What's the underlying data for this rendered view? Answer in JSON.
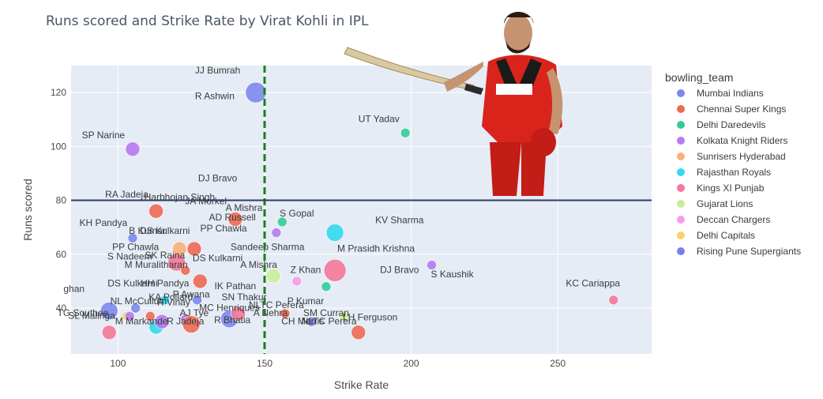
{
  "chart_data": {
    "type": "scatter",
    "title": "Runs scored and Strike Rate by Virat Kohli in IPL",
    "xlabel": "Strike Rate",
    "ylabel": "Runs scored",
    "xlim": [
      84,
      282
    ],
    "ylim": [
      23,
      130
    ],
    "xticks": [
      100,
      150,
      200,
      250
    ],
    "yticks": [
      40,
      60,
      80,
      100,
      120
    ],
    "grid": true,
    "reference_lines": [
      {
        "orientation": "vertical",
        "value": 150,
        "color": "#1a7f1a",
        "style": "dashed"
      },
      {
        "orientation": "horizontal",
        "value": 80,
        "color": "#2c3e60",
        "style": "solid"
      }
    ],
    "legend": {
      "title": "bowling_team",
      "placement": "right",
      "entries": [
        {
          "name": "Mumbai Indians",
          "color": "#7d88ee"
        },
        {
          "name": "Chennai Super Kings",
          "color": "#ec6a55"
        },
        {
          "name": "Delhi Daredevils",
          "color": "#33cc99"
        },
        {
          "name": "Kolkata Knight Riders",
          "color": "#b57aef"
        },
        {
          "name": "Sunrisers Hyderabad",
          "color": "#f9b07a"
        },
        {
          "name": "Rajasthan Royals",
          "color": "#33d9ee"
        },
        {
          "name": "Kings XI Punjab",
          "color": "#f37999"
        },
        {
          "name": "Gujarat Lions",
          "color": "#c5ef99"
        },
        {
          "name": "Deccan Chargers",
          "color": "#f79bec"
        },
        {
          "name": "Delhi Capitals",
          "color": "#fbcf6e"
        },
        {
          "name": "Rising Pune Supergiants",
          "color": "#7a7fef"
        }
      ]
    },
    "points": [
      {
        "label": "JJ Bumrah",
        "x": 147,
        "y": 120,
        "team": "Mumbai Indians",
        "size": 13
      },
      {
        "label": "R Ashwin",
        "x": 147,
        "y": 120,
        "team": "Mumbai Indians",
        "size": 0
      },
      {
        "label": "UT Yadav",
        "x": 198,
        "y": 105,
        "team": "Delhi Daredevils",
        "size": 6
      },
      {
        "label": "SP Narine",
        "x": 105,
        "y": 99,
        "team": "Kolkata Knight Riders",
        "size": 9
      },
      {
        "label": "DJ Bravo",
        "x": 115,
        "y": 87,
        "team": "Kolkata Knight Riders",
        "size": 0
      },
      {
        "label": "RA Jadeja",
        "x": 113,
        "y": 76,
        "team": "Chennai Super Kings",
        "size": 9
      },
      {
        "label": "Harbhajan Singh",
        "x": 113,
        "y": 76,
        "team": "Chennai Super Kings",
        "size": 0
      },
      {
        "label": "JA Morkel",
        "x": 123,
        "y": 74,
        "team": "Chennai Super Kings",
        "size": 0
      },
      {
        "label": "A Mishra",
        "x": 140,
        "y": 73,
        "team": "Chennai Super Kings",
        "size": 9
      },
      {
        "label": "AD Russell",
        "x": 140,
        "y": 73,
        "team": "Chennai Super Kings",
        "size": 0
      },
      {
        "label": "S Gopal",
        "x": 156,
        "y": 72,
        "team": "Delhi Daredevils",
        "size": 6
      },
      {
        "label": "KV Sharma",
        "x": 174,
        "y": 68,
        "team": "Rajasthan Royals",
        "size": 11
      },
      {
        "label": "PP Chawla",
        "x": 154,
        "y": 68,
        "team": "Kolkata Knight Riders",
        "size": 6
      },
      {
        "label": "KH Pandya",
        "x": 105,
        "y": 66,
        "team": "Mumbai Indians",
        "size": 6
      },
      {
        "label": "B Kumar",
        "x": 106,
        "y": 66,
        "team": "Mumbai Indians",
        "size": 0
      },
      {
        "label": "DS Kulkarni",
        "x": 112,
        "y": 66,
        "team": "Mumbai Indians",
        "size": 0
      },
      {
        "label": "PP Chawla",
        "x": 121,
        "y": 62,
        "team": "Sunrisers Hyderabad",
        "size": 9
      },
      {
        "label": "Sandeep Sharma",
        "x": 126,
        "y": 62,
        "team": "Chennai Super Kings",
        "size": 9
      },
      {
        "label": "M Prasidh Krishna",
        "x": 150,
        "y": 62,
        "team": "Kolkata Knight Riders",
        "size": 0
      },
      {
        "label": "S Nadeem",
        "x": 117,
        "y": 58,
        "team": "Kings XI Punjab",
        "size": 0
      },
      {
        "label": "SK Raina",
        "x": 120,
        "y": 57,
        "team": "Kings XI Punjab",
        "size": 11
      },
      {
        "label": "DS Kulkarni",
        "x": 126,
        "y": 57,
        "team": "Chennai Super Kings",
        "size": 0
      },
      {
        "label": "M Muralitharan",
        "x": 123,
        "y": 54,
        "team": "Chennai Super Kings",
        "size": 6
      },
      {
        "label": "A Mishra",
        "x": 153,
        "y": 52,
        "team": "Gujarat Lions",
        "size": 9
      },
      {
        "label": "Z Khan",
        "x": 174,
        "y": 54,
        "team": "Kings XI Punjab",
        "size": 14
      },
      {
        "label": "DJ Bravo",
        "x": 207,
        "y": 56,
        "team": "Kolkata Knight Riders",
        "size": 6
      },
      {
        "label": "S Kaushik",
        "x": 208,
        "y": 52,
        "team": "Kolkata Knight Riders",
        "size": 0
      },
      {
        "label": "DS Kulkarni",
        "x": 110,
        "y": 48,
        "team": "Mumbai Indians",
        "size": 0
      },
      {
        "label": "HH Pandya",
        "x": 128,
        "y": 50,
        "team": "Chennai Super Kings",
        "size": 9
      },
      {
        "label": "IK Pathan",
        "x": 161,
        "y": 50,
        "team": "Deccan Chargers",
        "size": 6
      },
      {
        "label": "KC Cariappa",
        "x": 269,
        "y": 43,
        "team": "Kings XI Punjab",
        "size": 6
      },
      {
        "label": "R Vinay",
        "x": 171,
        "y": 48,
        "team": "Delhi Daredevils",
        "size": 6
      },
      {
        "label": "KA Pollard",
        "x": 116,
        "y": 43,
        "team": "Rajasthan Royals",
        "size": 6
      },
      {
        "label": "P Awana",
        "x": 127,
        "y": 43,
        "team": "Mumbai Indians",
        "size": 6
      },
      {
        "label": "SN Thakur",
        "x": 140,
        "y": 41,
        "team": "Mumbai Indians",
        "size": 0
      },
      {
        "label": "P Kumar",
        "x": 160,
        "y": 41,
        "team": "Mumbai Indians",
        "size": 0
      },
      {
        "label": "M Ashwin",
        "x": 97,
        "y": 39,
        "team": "Mumbai Indians",
        "size": 11
      },
      {
        "label": "AJ Tye",
        "x": 123,
        "y": 36,
        "team": "Kolkata Knight Riders",
        "size": 6
      },
      {
        "label": "MC Henriques",
        "x": 138,
        "y": 36,
        "team": "Mumbai Indians",
        "size": 11
      },
      {
        "label": "NLTC Perera",
        "x": 141,
        "y": 38,
        "team": "Kings XI Punjab",
        "size": 9
      },
      {
        "label": "A Nehra",
        "x": 157,
        "y": 38,
        "team": "Chennai Super Kings",
        "size": 6
      },
      {
        "label": "SM Curran",
        "x": 177,
        "y": 37,
        "team": "Gujarat Lions",
        "size": 6
      },
      {
        "label": "LH Ferguson",
        "x": 182,
        "y": 31,
        "team": "Chennai Super Kings",
        "size": 9
      },
      {
        "label": "R Bhatia",
        "x": 139,
        "y": 34,
        "team": "Chennai Super Kings",
        "size": 0
      },
      {
        "label": "CH Morris",
        "x": 166,
        "y": 35,
        "team": "Mumbai Indians",
        "size": 6
      },
      {
        "label": "TG Southee",
        "x": 103,
        "y": 37,
        "team": "Delhi Capitals",
        "size": 6
      },
      {
        "label": "M Markande",
        "x": 113,
        "y": 33,
        "team": "Rajasthan Royals",
        "size": 9
      },
      {
        "label": "R Jadeja",
        "x": 125,
        "y": 34,
        "team": "Chennai Super Kings",
        "size": 11
      },
      {
        "label": "K Rabada",
        "x": 115,
        "y": 35,
        "team": "Kolkata Knight Riders",
        "size": 9
      },
      {
        "label": "SL Malinga",
        "x": 97,
        "y": 31,
        "team": "Kings XI Punjab",
        "size": 9
      },
      {
        "label": "A Kumble",
        "x": 104,
        "y": 37,
        "team": "Kolkata Knight Riders",
        "size": 6
      },
      {
        "label": "R Sharma",
        "x": 111,
        "y": 37,
        "team": "Chennai Super Kings",
        "size": 6
      },
      {
        "label": "NL McCullum",
        "x": 106,
        "y": 40,
        "team": "Mumbai Indians",
        "size": 6
      }
    ],
    "text_labels": [
      {
        "text": "JJ Bumrah",
        "x": 134,
        "y": 127
      },
      {
        "text": "R Ashwin",
        "x": 133,
        "y": 117.5
      },
      {
        "text": "UT Yadav",
        "x": 189,
        "y": 109
      },
      {
        "text": "SP Narine",
        "x": 95,
        "y": 103
      },
      {
        "text": "DJ Bravo",
        "x": 134,
        "y": 87
      },
      {
        "text": "RA Jadeja",
        "x": 103,
        "y": 81
      },
      {
        "text": "Harbhojan Singh",
        "x": 121,
        "y": 80
      },
      {
        "text": "JA Morkel",
        "x": 130,
        "y": 78.5
      },
      {
        "text": "A Mishra",
        "x": 143,
        "y": 76
      },
      {
        "text": "AD Russell",
        "x": 139,
        "y": 72.5
      },
      {
        "text": "S Gopal",
        "x": 161,
        "y": 74
      },
      {
        "text": "KV Sharma",
        "x": 196,
        "y": 71.5
      },
      {
        "text": "PP Chawla",
        "x": 136,
        "y": 68.5
      },
      {
        "text": "KH Pandya",
        "x": 95,
        "y": 70.5
      },
      {
        "text": "B Kumar",
        "x": 110,
        "y": 67.5
      },
      {
        "text": "DS Kulkarni",
        "x": 116,
        "y": 67.5
      },
      {
        "text": "Sandeep Sharma",
        "x": 151,
        "y": 61.5
      },
      {
        "text": "PP Chawla",
        "x": 106,
        "y": 61.5
      },
      {
        "text": "M Prasidh Krishna",
        "x": 188,
        "y": 61
      },
      {
        "text": "S Nadeem",
        "x": 104,
        "y": 58
      },
      {
        "text": "SK Raina",
        "x": 116,
        "y": 58.5
      },
      {
        "text": "DS Kulkarni",
        "x": 134,
        "y": 57.5
      },
      {
        "text": "M Muralitharan",
        "x": 113,
        "y": 55
      },
      {
        "text": "A Mishra",
        "x": 148,
        "y": 55
      },
      {
        "text": "Z Khan",
        "x": 164,
        "y": 53
      },
      {
        "text": "DJ Bravo",
        "x": 196,
        "y": 53
      },
      {
        "text": "S Kaushik",
        "x": 214,
        "y": 51.5
      },
      {
        "text": "DS Kulkarni",
        "x": 105,
        "y": 48
      },
      {
        "text": "HH Pandya",
        "x": 116,
        "y": 48
      },
      {
        "text": "IK Pathan",
        "x": 140,
        "y": 47
      },
      {
        "text": "KC Cariappa",
        "x": 262,
        "y": 48
      },
      {
        "text": "ghan",
        "x": 85,
        "y": 46
      },
      {
        "text": "KA Pollard",
        "x": 118,
        "y": 43
      },
      {
        "text": "P Awana",
        "x": 125,
        "y": 44
      },
      {
        "text": "SN Thakur",
        "x": 143,
        "y": 43
      },
      {
        "text": "P Kumar",
        "x": 164,
        "y": 41.5
      },
      {
        "text": "NL McCullum",
        "x": 107,
        "y": 41.5
      },
      {
        "text": "R Vinay",
        "x": 119,
        "y": 41
      },
      {
        "text": "NLTC Perera",
        "x": 154,
        "y": 40
      },
      {
        "text": "MC Henriques",
        "x": 138,
        "y": 39
      },
      {
        "text": "AJ Tye",
        "x": 126,
        "y": 37
      },
      {
        "text": "A Nehra",
        "x": 152,
        "y": 37
      },
      {
        "text": "SM Curran",
        "x": 171,
        "y": 37
      },
      {
        "text": "LH Ferguson",
        "x": 186,
        "y": 35.5
      },
      {
        "text": "R Bhatia",
        "x": 139,
        "y": 34.5
      },
      {
        "text": "CH Morris",
        "x": 163,
        "y": 34
      },
      {
        "text": "NLTC Perera",
        "x": 172,
        "y": 34
      },
      {
        "text": "M Markande",
        "x": 108,
        "y": 34
      },
      {
        "text": "R Jadeja",
        "x": 123,
        "y": 34
      },
      {
        "text": "SL Malinga",
        "x": 91,
        "y": 36
      },
      {
        "text": "TG Southee",
        "x": 88,
        "y": 37
      }
    ]
  }
}
